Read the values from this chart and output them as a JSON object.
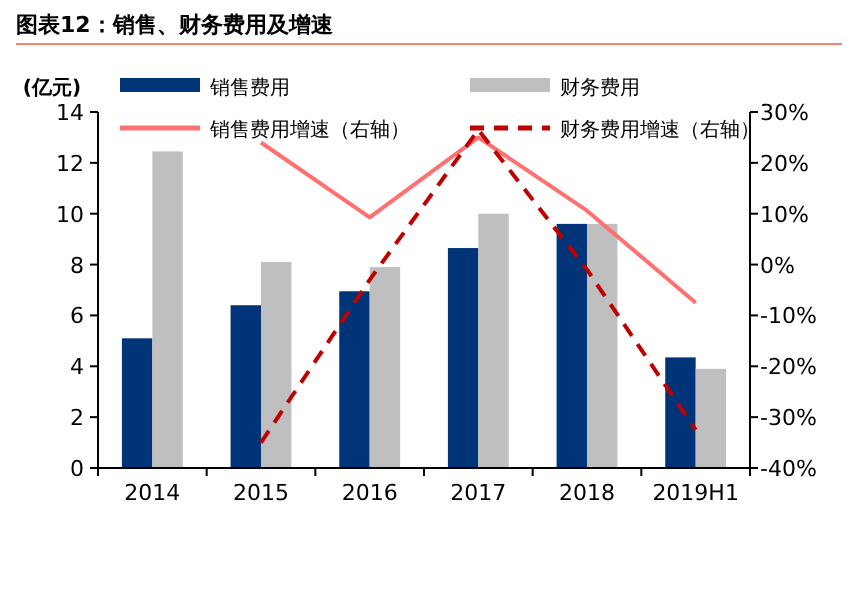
{
  "chart_data": {
    "type": "bar",
    "title": "图表12：销售、财务费用及增速",
    "ylabel": "(亿元)",
    "categories": [
      "2014",
      "2015",
      "2016",
      "2017",
      "2018",
      "2019H1"
    ],
    "series": [
      {
        "name": "销售费用",
        "color": "#003478",
        "values": [
          5.1,
          6.4,
          6.95,
          8.65,
          9.6,
          4.35
        ]
      },
      {
        "name": "财务费用",
        "color": "#bfbfbf",
        "values": [
          12.45,
          8.1,
          7.9,
          10.0,
          9.6,
          3.9
        ]
      },
      {
        "name": "销售费用增速（右轴）",
        "type": "line",
        "axis": "y2",
        "color": "#ff7070",
        "line_style": "solid",
        "values": [
          null,
          24,
          9.3,
          25,
          10.6,
          -7.5
        ]
      },
      {
        "name": "财务费用增速（右轴）",
        "type": "line",
        "axis": "y2",
        "color": "#c00000",
        "line_style": "dashed",
        "values": [
          null,
          -35,
          -3,
          26.5,
          -1,
          -32.5
        ]
      }
    ],
    "ylim": [
      0,
      14
    ],
    "yticks": [
      0,
      2,
      4,
      6,
      8,
      10,
      12,
      14
    ],
    "y2lim": [
      -40,
      30
    ],
    "y2ticks": [
      {
        "value": -40,
        "label": "-40%"
      },
      {
        "value": -30,
        "label": "-30%"
      },
      {
        "value": -20,
        "label": "-20%"
      },
      {
        "value": -10,
        "label": "-10%"
      },
      {
        "value": 0,
        "label": "0%"
      },
      {
        "value": 10,
        "label": "10%"
      },
      {
        "value": 20,
        "label": "20%"
      },
      {
        "value": 30,
        "label": "30%"
      }
    ],
    "grid": false,
    "legend": "top"
  }
}
